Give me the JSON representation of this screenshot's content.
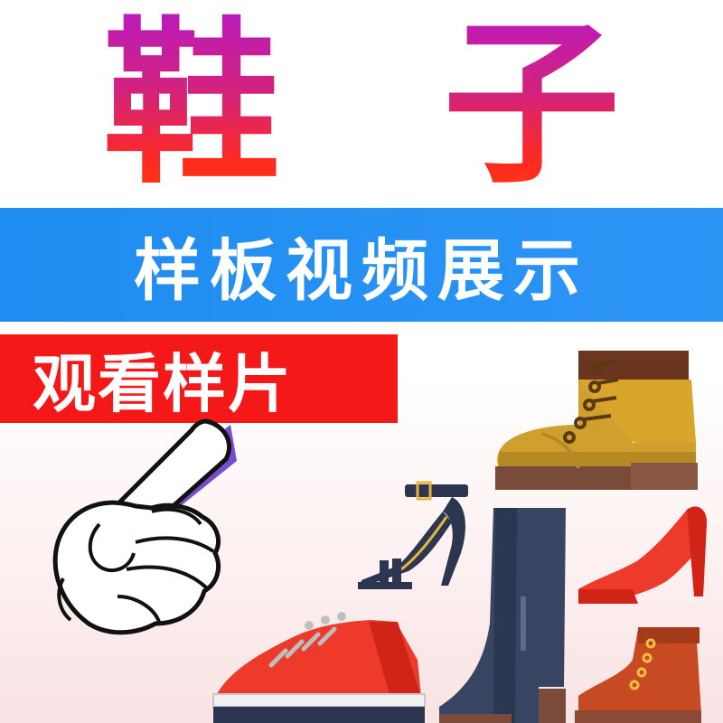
{
  "title": {
    "text": "鞋 子",
    "colors": [
      "#b81ac0",
      "#ff2a1e"
    ]
  },
  "banner": {
    "text": "样板视频展示",
    "color": "#2d95f6"
  },
  "cta": {
    "text": "观看样片",
    "color": "#f41818"
  },
  "icons": [
    "pointing-hand-icon",
    "work-boot-icon",
    "strappy-sandal-icon",
    "tall-boot-icon",
    "high-heel-icon",
    "sneaker-icon",
    "ankle-boot-icon"
  ]
}
